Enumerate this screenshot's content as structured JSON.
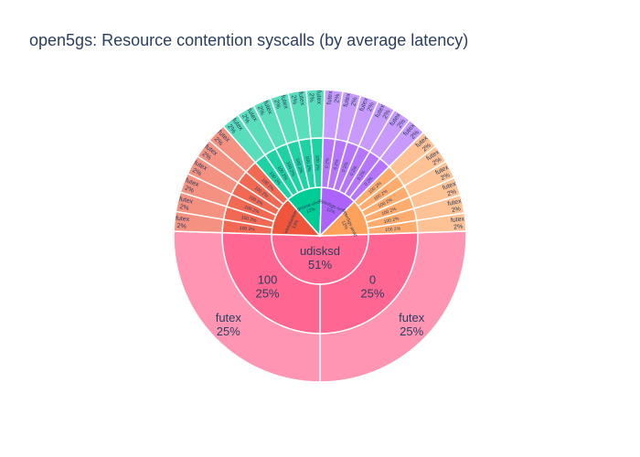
{
  "chart_data": {
    "type": "sunburst",
    "title": "open5gs: Resource contention syscalls (by average latency)",
    "root": {
      "label": "udisksd",
      "value": 51,
      "color": "#ff6692",
      "children": [
        {
          "label": "0",
          "value": 25,
          "color": "#ff6692",
          "children": [
            {
              "label": "futex",
              "value": 25,
              "color": "#ff6692"
            }
          ]
        },
        {
          "label": "100",
          "value": 25,
          "color": "#ff6692",
          "children": [
            {
              "label": "futex",
              "value": 25,
              "color": "#ff6692"
            }
          ]
        }
      ]
    },
    "other_roots": [
      {
        "label": "wireplumber",
        "value": 13,
        "color": "#ef553b",
        "children": [
          {
            "label": "100",
            "value": 2,
            "color": "#ef553b",
            "children": [
              {
                "label": "futex",
                "value": 2
              }
            ]
          },
          {
            "label": "100",
            "value": 2,
            "color": "#ef553b",
            "children": [
              {
                "label": "futex",
                "value": 2
              }
            ]
          },
          {
            "label": "100",
            "value": 2,
            "color": "#ef553b",
            "children": [
              {
                "label": "futex",
                "value": 2
              }
            ]
          },
          {
            "label": "100",
            "value": 2,
            "color": "#ef553b",
            "children": [
              {
                "label": "futex",
                "value": 2
              }
            ]
          },
          {
            "label": "100",
            "value": 2,
            "color": "#ef553b",
            "children": [
              {
                "label": "futex",
                "value": 2
              }
            ]
          },
          {
            "label": "100",
            "value": 2,
            "color": "#ef553b",
            "children": [
              {
                "label": "futex",
                "value": 2
              }
            ]
          }
        ]
      },
      {
        "label": "gnome-shell",
        "value": 12,
        "color": "#00cc96",
        "children": [
          {
            "label": "100",
            "value": 2,
            "color": "#00cc96",
            "children": [
              {
                "label": "futex",
                "value": 2
              }
            ]
          },
          {
            "label": "100",
            "value": 2,
            "color": "#00cc96",
            "children": [
              {
                "label": "futex",
                "value": 2
              }
            ]
          },
          {
            "label": "100",
            "value": 2,
            "color": "#00cc96",
            "children": [
              {
                "label": "futex",
                "value": 2
              }
            ]
          },
          {
            "label": "100",
            "value": 2,
            "color": "#00cc96",
            "children": [
              {
                "label": "futex",
                "value": 2
              }
            ]
          },
          {
            "label": "100",
            "value": 2,
            "color": "#00cc96",
            "children": [
              {
                "label": "futex",
                "value": 2
              }
            ]
          },
          {
            "label": "100",
            "value": 2,
            "color": "#00cc96",
            "children": [
              {
                "label": "futex",
                "value": 2
              }
            ]
          }
        ]
      },
      {
        "label": "open5gs-smfd",
        "value": 12,
        "color": "#ab63fa",
        "children": [
          {
            "label": "0",
            "value": 2,
            "color": "#ab63fa",
            "children": [
              {
                "label": "futex",
                "value": 2
              }
            ]
          },
          {
            "label": "0",
            "value": 2,
            "color": "#ab63fa",
            "children": [
              {
                "label": "futex",
                "value": 2
              }
            ]
          },
          {
            "label": "0",
            "value": 2,
            "color": "#ab63fa",
            "children": [
              {
                "label": "futex",
                "value": 2
              }
            ]
          },
          {
            "label": "0",
            "value": 2,
            "color": "#ab63fa",
            "children": [
              {
                "label": "futex",
                "value": 2
              }
            ]
          },
          {
            "label": "0",
            "value": 2,
            "color": "#ab63fa",
            "children": [
              {
                "label": "futex",
                "value": 2
              }
            ]
          },
          {
            "label": "0",
            "value": 2,
            "color": "#ab63fa",
            "children": [
              {
                "label": "futex",
                "value": 2
              }
            ]
          }
        ]
      },
      {
        "label": "open5gs-amfd",
        "value": 12,
        "color": "#ffa15a",
        "children": [
          {
            "label": "100",
            "value": 2,
            "color": "#ffa15a",
            "children": [
              {
                "label": "futex",
                "value": 2
              }
            ]
          },
          {
            "label": "100",
            "value": 2,
            "color": "#ffa15a",
            "children": [
              {
                "label": "futex",
                "value": 2
              }
            ]
          },
          {
            "label": "100",
            "value": 2,
            "color": "#ffa15a",
            "children": [
              {
                "label": "futex",
                "value": 2
              }
            ]
          },
          {
            "label": "100",
            "value": 2,
            "color": "#ffa15a",
            "children": [
              {
                "label": "futex",
                "value": 2
              }
            ]
          },
          {
            "label": "100",
            "value": 2,
            "color": "#ffa15a",
            "children": [
              {
                "label": "futex",
                "value": 2
              }
            ]
          },
          {
            "label": "100",
            "value": 2,
            "color": "#ffa15a",
            "children": [
              {
                "label": "futex",
                "value": 2
              }
            ]
          }
        ]
      }
    ]
  }
}
